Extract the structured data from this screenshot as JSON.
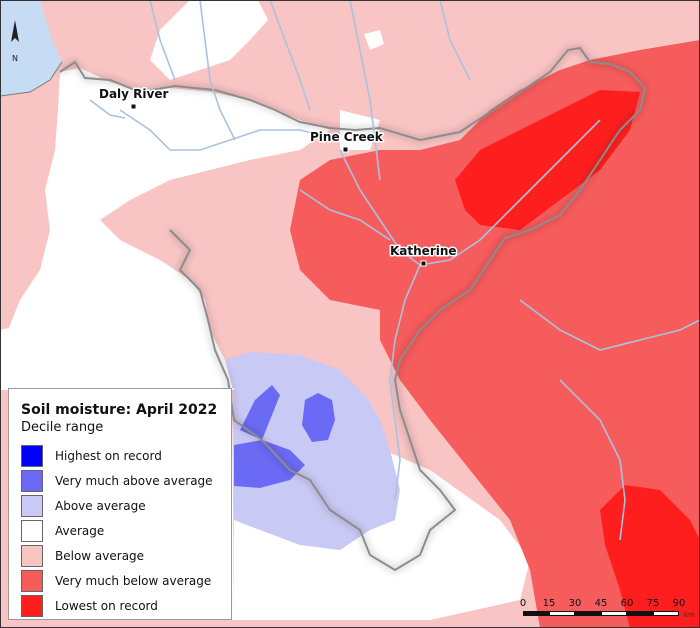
{
  "map": {
    "north_label": "N",
    "towns": [
      {
        "name": "Daly River"
      },
      {
        "name": "Pine Creek"
      },
      {
        "name": "Katherine"
      }
    ]
  },
  "legend": {
    "title": "Soil moisture: April 2022",
    "subtitle": "Decile range",
    "items": [
      {
        "label": "Highest on record",
        "color": "#0000ff"
      },
      {
        "label": "Very much above average",
        "color": "#6a6af5"
      },
      {
        "label": "Above average",
        "color": "#c9c9f5"
      },
      {
        "label": "Average",
        "color": "#ffffff"
      },
      {
        "label": "Below average",
        "color": "#f9c4c4"
      },
      {
        "label": "Very much below average",
        "color": "#f75c5c"
      },
      {
        "label": "Lowest on record",
        "color": "#ff1e1e"
      }
    ]
  },
  "scale": {
    "ticks": [
      "0",
      "15",
      "30",
      "45",
      "60",
      "75",
      "90"
    ],
    "unit": "km"
  }
}
